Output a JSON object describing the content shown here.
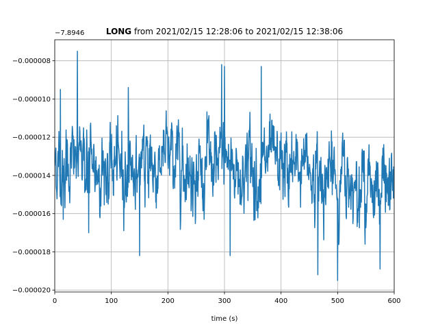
{
  "chart_data": {
    "type": "line",
    "title_station": "LONG",
    "title_rest": " from 2021/02/15 12:28:06 to 2021/02/15 12:38:06",
    "offset_label": "−7.8946",
    "xlabel": "time (s)",
    "ylabel": "",
    "xlim": [
      0,
      600
    ],
    "ylim": [
      -2.01e-05,
      -6.9e-06
    ],
    "x_ticks": [
      0,
      100,
      200,
      300,
      400,
      500,
      600
    ],
    "x_tick_labels": [
      "0",
      "100",
      "200",
      "300",
      "400",
      "500",
      "600"
    ],
    "y_ticks": [
      -8e-06,
      -1e-05,
      -1.2e-05,
      -1.4e-05,
      -1.6e-05,
      -1.8e-05,
      -2e-05
    ],
    "y_tick_labels": [
      "−0.000008",
      "−0.000010",
      "−0.000012",
      "−0.000014",
      "−0.000016",
      "−0.000018",
      "−0.000020"
    ],
    "grid": true,
    "color": "#1f77b4",
    "series_description": "noisy seismic waveform, ~600 samples",
    "key_points": [
      {
        "x": 0,
        "y": -1.35e-05
      },
      {
        "x": 10,
        "y": -9.5e-06
      },
      {
        "x": 15,
        "y": -1.63e-05
      },
      {
        "x": 40,
        "y": -7.5e-06
      },
      {
        "x": 60,
        "y": -1.7e-05
      },
      {
        "x": 130,
        "y": -9.4e-06
      },
      {
        "x": 150,
        "y": -1.82e-05
      },
      {
        "x": 295,
        "y": -8.2e-06
      },
      {
        "x": 300,
        "y": -8.3e-06
      },
      {
        "x": 310,
        "y": -1.82e-05
      },
      {
        "x": 365,
        "y": -8.3e-06
      },
      {
        "x": 465,
        "y": -1.92e-05
      },
      {
        "x": 500,
        "y": -1.95e-05
      },
      {
        "x": 575,
        "y": -1.89e-05
      },
      {
        "x": 600,
        "y": -1.38e-05
      }
    ]
  }
}
